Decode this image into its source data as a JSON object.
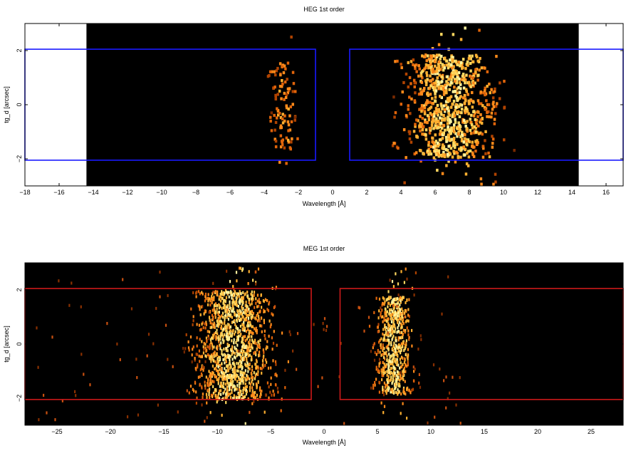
{
  "chart_data": [
    {
      "type": "heatmap",
      "title": "HEG 1st order",
      "xlabel": "Wavelength [Å]",
      "ylabel": "tg_d [arcsec]",
      "xlim": [
        -18,
        17
      ],
      "ylim": [
        -3,
        3
      ],
      "data_extent_x": [
        -14.4,
        14.4
      ],
      "x_ticks": [
        -18,
        -16,
        -14,
        -12,
        -10,
        -8,
        -6,
        -4,
        -2,
        0,
        2,
        4,
        6,
        8,
        10,
        12,
        14,
        16
      ],
      "y_ticks": [
        -2,
        0,
        2
      ],
      "background_color": "#000000",
      "region_color": "#1a1aff",
      "extraction_regions": [
        {
          "x": [
            -18,
            -1.0
          ],
          "y": [
            -2.05,
            2.05
          ]
        },
        {
          "x": [
            1.0,
            17
          ],
          "y": [
            -2.05,
            2.05
          ]
        }
      ],
      "clusters": [
        {
          "x_range": [
            -4.8,
            -1.5
          ],
          "y_range": [
            -1.6,
            1.6
          ],
          "center": -3.0,
          "peak_density": 0.35
        },
        {
          "x_range": [
            1.2,
            12.8
          ],
          "y_range": [
            -1.9,
            1.9
          ],
          "center": 6.8,
          "peak_density": 0.85
        }
      ]
    },
    {
      "type": "heatmap",
      "title": "MEG 1st order",
      "xlabel": "Wavelength [Å]",
      "ylabel": "tg_d [arcsec]",
      "xlim": [
        -28,
        28
      ],
      "ylim": [
        -3,
        3
      ],
      "data_extent_x": [
        -28,
        28
      ],
      "x_ticks": [
        -25,
        -20,
        -15,
        -10,
        -5,
        0,
        5,
        10,
        15,
        20,
        25
      ],
      "y_ticks": [
        -2,
        0,
        2
      ],
      "background_color": "#000000",
      "region_color": "#cc1a1a",
      "extraction_regions": [
        {
          "x": [
            -28,
            -1.2
          ],
          "y": [
            -2.05,
            2.05
          ]
        },
        {
          "x": [
            1.5,
            28
          ],
          "y": [
            -2.05,
            2.05
          ]
        }
      ],
      "clusters": [
        {
          "x_range": [
            -18,
            -2
          ],
          "y_range": [
            -2.0,
            2.0
          ],
          "center": -8.5,
          "peak_density": 0.9
        },
        {
          "x_range": [
            2.5,
            10
          ],
          "y_range": [
            -1.8,
            1.8
          ],
          "center": 6.5,
          "peak_density": 0.9
        }
      ]
    }
  ]
}
